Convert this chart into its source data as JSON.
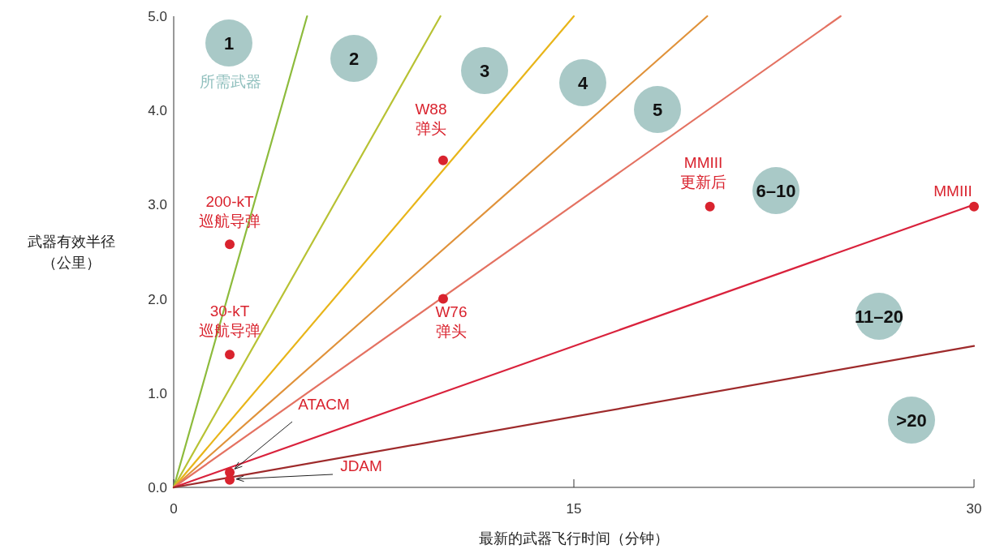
{
  "chart_data": {
    "type": "line",
    "xlabel": "最新的武器飞行时间（分钟）",
    "ylabel": "武器有效半径（公里）",
    "xlim": [
      0,
      30
    ],
    "ylim": [
      0,
      5
    ],
    "xticks": [
      0,
      15,
      30
    ],
    "yticks": [
      {
        "value": 0,
        "label": "0.0"
      },
      {
        "value": 1,
        "label": "1.0"
      },
      {
        "value": 2,
        "label": "2.0"
      },
      {
        "value": 3,
        "label": "3.0"
      },
      {
        "value": 4,
        "label": "4.0"
      },
      {
        "value": 5,
        "label": "5.0"
      }
    ],
    "series": [
      {
        "color": "#8dbb3c",
        "x": [
          0,
          5
        ],
        "values": [
          0,
          5
        ]
      },
      {
        "color": "#b8c234",
        "x": [
          0,
          10
        ],
        "values": [
          0,
          5
        ]
      },
      {
        "color": "#e8b51a",
        "x": [
          0,
          15
        ],
        "values": [
          0,
          5
        ]
      },
      {
        "color": "#e0923a",
        "x": [
          0,
          20
        ],
        "values": [
          0,
          5
        ]
      },
      {
        "color": "#e47262",
        "x": [
          0,
          25
        ],
        "values": [
          0,
          5
        ]
      },
      {
        "color": "#d9223c",
        "x": [
          0,
          30
        ],
        "values": [
          0,
          3
        ]
      },
      {
        "color": "#9e2a2b",
        "x": [
          0,
          30
        ],
        "values": [
          0,
          1.5
        ]
      },
      {
        "type": "scatter",
        "marker": "circle",
        "name": "200-kT\n巡航导弹",
        "color": "#d9232e",
        "x": [
          2.1
        ],
        "values": [
          2.58
        ]
      },
      {
        "type": "scatter",
        "marker": "circle",
        "name": "30-kT\n巡航导弹",
        "color": "#d9232e",
        "x": [
          2.1
        ],
        "values": [
          1.41
        ]
      },
      {
        "type": "scatter",
        "marker": "circle",
        "name": "W88\n弹头",
        "color": "#d9232e",
        "x": [
          10.1
        ],
        "values": [
          3.47
        ]
      },
      {
        "type": "scatter",
        "marker": "circle",
        "name": "W76\n弹头",
        "color": "#d9232e",
        "x": [
          10.1
        ],
        "values": [
          2.0
        ]
      },
      {
        "type": "scatter",
        "marker": "circle",
        "name": "MMIII\n更新后",
        "color": "#d9232e",
        "x": [
          20.1
        ],
        "values": [
          2.98
        ]
      },
      {
        "type": "scatter",
        "marker": "circle",
        "name": "MMIII",
        "color": "#d9232e",
        "x": [
          30
        ],
        "values": [
          2.98
        ]
      },
      {
        "type": "scatter",
        "marker": "circle",
        "name": "ATACM",
        "color": "#d9232e",
        "x": [
          2.1
        ],
        "values": [
          0.16
        ]
      },
      {
        "type": "scatter",
        "marker": "circle",
        "name": "JDAM",
        "color": "#d9232e",
        "x": [
          2.1
        ],
        "values": [
          0.08
        ]
      }
    ],
    "annotations": [
      "1",
      "所需武器",
      "2",
      "3",
      "4",
      "5",
      "6–10",
      "11–20",
      ">20"
    ]
  }
}
